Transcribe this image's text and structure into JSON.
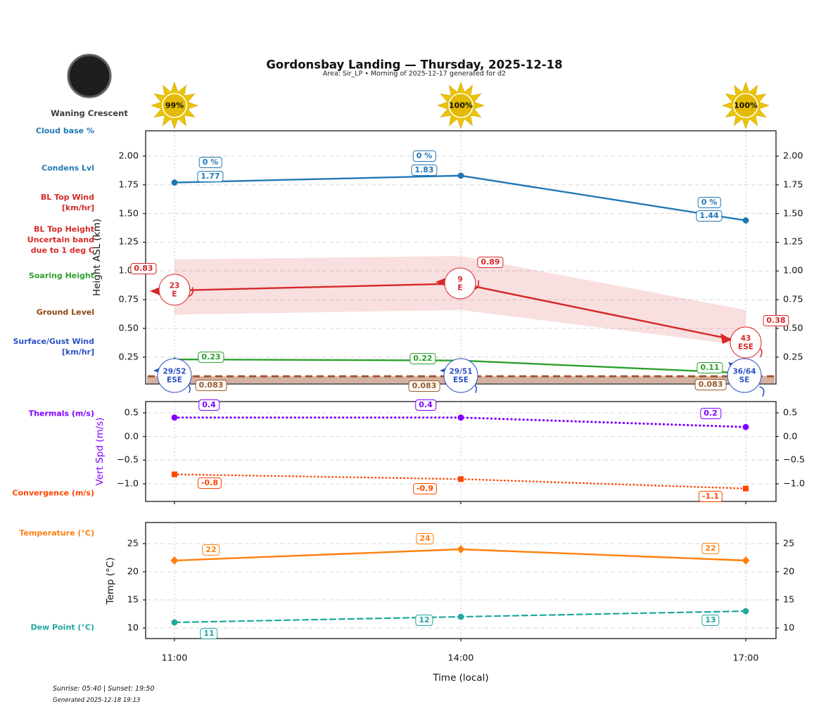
{
  "header": {
    "title": "Gordonsbay Landing — Thursday, 2025-12-18",
    "subtitle": "Area: Sir_LP • Morning of 2025-12-17 generated for d2"
  },
  "moon": {
    "phase_label": "Waning Crescent"
  },
  "sun_markers": {
    "values": [
      "99%",
      "100%",
      "100%"
    ],
    "color": "#ecc404"
  },
  "sidebar": {
    "labels": [
      {
        "id": "cloud-base",
        "text": "Cloud base %",
        "color": "#2077b4"
      },
      {
        "id": "condens-lvl",
        "text": "Condens Lvl",
        "color": "#2077b4"
      },
      {
        "id": "bl-top-wind",
        "text": "BL Top Wind\n[km/hr]",
        "color": "#d62728"
      },
      {
        "id": "bl-top-height",
        "text": "BL Top Height\nUncertain band\ndue to 1 deg C",
        "color": "#d62728"
      },
      {
        "id": "soaring-height",
        "text": "Soaring Height",
        "color": "#2ca02c"
      },
      {
        "id": "ground-level",
        "text": "Ground Level",
        "color": "#8b4513"
      },
      {
        "id": "surface-gust-wind",
        "text": "Surface/Gust Wind\n[km/hr]",
        "color": "#2b50c5"
      },
      {
        "id": "thermals",
        "text": "Thermals (m/s)",
        "color": "#8000ff"
      },
      {
        "id": "convergence",
        "text": "Convergence (m/s)",
        "color": "#ff4500"
      },
      {
        "id": "temperature",
        "text": "Temperature (°C)",
        "color": "#ff7f0e"
      },
      {
        "id": "dew-point",
        "text": "Dew Point (°C)",
        "color": "#20a79e"
      }
    ]
  },
  "axes": {
    "x_ticks": [
      "11:00",
      "14:00",
      "17:00"
    ],
    "x_label": "Time (local)",
    "height_label": "Height ASL (km)",
    "vert_label": "Vert Spd (m/s)",
    "temp_label": "Temp (°C)"
  },
  "chart_data": [
    {
      "type": "line",
      "title": "Height ASL panel",
      "x": [
        "11:00",
        "14:00",
        "17:00"
      ],
      "ylabel": "Height ASL (km)",
      "ylim": [
        0.0,
        2.22
      ],
      "grid": true,
      "ytick_labels": [
        "2.00",
        "1.75",
        "1.50",
        "1.25",
        "1.00",
        "0.75",
        "0.50",
        "0.25"
      ],
      "ytick_values": [
        2.0,
        1.75,
        1.5,
        1.25,
        1.0,
        0.75,
        0.5,
        0.25
      ],
      "series": [
        {
          "name": "Condens Lvl",
          "color": "#2077b4",
          "line": "solid",
          "marker": "circle",
          "values": [
            1.77,
            1.83,
            1.44
          ],
          "value_labels": [
            "1.77",
            "1.83",
            "1.44"
          ],
          "cloud_base_labels": [
            "0 %",
            "0 %",
            "0 %"
          ]
        },
        {
          "name": "BL Top Height",
          "color": "#d62728",
          "line": "solid",
          "values": [
            0.83,
            0.89,
            0.38
          ],
          "value_labels": [
            "0.83",
            "0.89",
            "0.38"
          ],
          "band_upper": [
            1.1,
            1.13,
            0.66
          ],
          "band_lower": [
            0.62,
            0.66,
            0.35
          ],
          "wind": [
            {
              "speed": "23",
              "dir": "E"
            },
            {
              "speed": "9",
              "dir": "E"
            },
            {
              "speed": "43",
              "dir": "ESE"
            }
          ]
        },
        {
          "name": "Soaring Height",
          "color": "#2ca02c",
          "line": "solid",
          "marker": "triangle",
          "values": [
            0.23,
            0.22,
            0.11
          ],
          "value_labels": [
            "0.23",
            "0.22",
            "0.11"
          ]
        },
        {
          "name": "Ground Level",
          "color": "#a0522d",
          "line": "dashed",
          "values": [
            0.083,
            0.083,
            0.083
          ],
          "value_labels": [
            "0.083",
            "0.083",
            "0.083"
          ],
          "label_color": "#9c5a28"
        },
        {
          "name": "Surface/Gust Wind",
          "color": "#2b50c5",
          "wind": [
            {
              "speed": "29/52",
              "dir": "ESE"
            },
            {
              "speed": "29/51",
              "dir": "ESE"
            },
            {
              "speed": "36/64",
              "dir": "SE"
            }
          ]
        }
      ]
    },
    {
      "type": "line",
      "title": "Vertical speed panel",
      "x": [
        "11:00",
        "14:00",
        "17:00"
      ],
      "ylabel": "Vert Spd (m/s)",
      "ylim": [
        -1.37,
        0.78
      ],
      "grid": true,
      "ytick_labels": [
        "0.5",
        "0.0",
        "−0.5",
        "−1.0"
      ],
      "ytick_values": [
        0.5,
        0.0,
        -0.5,
        -1.0
      ],
      "series": [
        {
          "name": "Thermals",
          "color": "#8000ff",
          "line": "dotted",
          "marker": "circle",
          "values": [
            0.4,
            0.4,
            0.2
          ],
          "value_labels": [
            "0.4",
            "0.4",
            "0.2"
          ]
        },
        {
          "name": "Convergence",
          "color": "#ff4500",
          "line": "dotted",
          "marker": "square",
          "values": [
            -0.8,
            -0.9,
            -1.1
          ],
          "value_labels": [
            "-0.8",
            "-0.9",
            "-1.1"
          ]
        }
      ]
    },
    {
      "type": "line",
      "title": "Temperature panel",
      "x": [
        "11:00",
        "14:00",
        "17:00"
      ],
      "ylabel": "Temp (°C)",
      "ylim": [
        8.4,
        28.8
      ],
      "grid": true,
      "ytick_labels": [
        "25",
        "20",
        "15",
        "10"
      ],
      "ytick_values": [
        25,
        20,
        15,
        10
      ],
      "series": [
        {
          "name": "Temperature",
          "color": "#ff7f0e",
          "line": "solid",
          "marker": "diamond",
          "values": [
            22,
            24,
            22
          ],
          "value_labels": [
            "22",
            "24",
            "22"
          ]
        },
        {
          "name": "Dew Point",
          "color": "#20a79e",
          "line": "dashed",
          "marker": "circle",
          "values": [
            11,
            12,
            13
          ],
          "value_labels": [
            "11",
            "12",
            "13"
          ]
        }
      ]
    }
  ],
  "footer": {
    "sun_times": "Sunrise: 05:40 | Sunset: 19:50",
    "generated": "Generated 2025-12-18 19:13"
  }
}
